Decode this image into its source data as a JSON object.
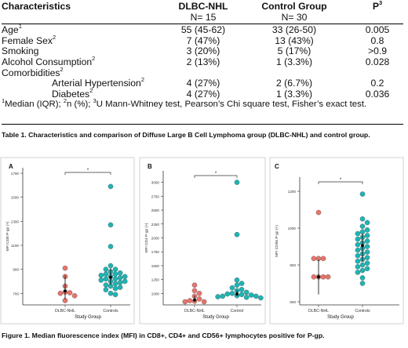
{
  "table": {
    "headers": [
      "Characteristics",
      "DLBC-NHL",
      "Control Group",
      "P"
    ],
    "header_p_sup": "3",
    "subheaders": [
      "N= 15",
      "N= 30"
    ],
    "rows": [
      {
        "label": "Age",
        "sup": "1",
        "dlbc": "55 (45-62)",
        "control": "33 (26-50)",
        "p": "0.005"
      },
      {
        "label": "Female Sex",
        "sup": "2",
        "dlbc": "7 (47%)",
        "control": "13 (43%)",
        "p": "0.8"
      },
      {
        "label": "Smoking",
        "sup": "",
        "dlbc": "3 (20%)",
        "control": "5 (17%)",
        "p": ">0.9"
      },
      {
        "label": "Alcohol Consumption",
        "sup": "2",
        "dlbc": "2 (13%)",
        "control": "1 (3.3%)",
        "p": "0.028"
      },
      {
        "label": "Comorbidities",
        "sup": "2",
        "dlbc": "",
        "control": "",
        "p": ""
      },
      {
        "label": "Arterial Hypertension",
        "sup": "2",
        "dlbc": "4 (27%)",
        "control": "2 (6.7%)",
        "p": "0.2"
      },
      {
        "label": "Diabetes",
        "sup": "2",
        "dlbc": "4 (27%)",
        "control": "1 (3.3%)",
        "p": "0.036"
      }
    ],
    "footnote": {
      "s1": "1",
      "t1": "Median (IQR); ",
      "s2": "2",
      "t2": "n (%); ",
      "s3": "3",
      "t3": "U Mann-Whitney test, Pearson’s Chi square test, Fisher’s exact test."
    }
  },
  "table_caption": "Table 1. Characteristics and comparison of Diffuse Large B Cell Lymphoma group (DLBC-NHL) and control group.",
  "figure_caption": "Figure 1. Median fluorescence index (MFI) in CD8+, CD4+ and CD56+ lymphocytes positive for P-gp.",
  "colors": {
    "dlbc": "#e8746b",
    "control": "#1db4b4",
    "summary": "#000000"
  },
  "chart_data": [
    {
      "type": "scatter",
      "panel": "A",
      "ylabel": "MFI CD8 P-gp (+)",
      "xlabel": "Study Group",
      "categories": [
        "DLBC-NHL",
        "Controls"
      ],
      "yticks": [
        700,
        900,
        1100,
        1300,
        1500,
        1700
      ],
      "ylim": [
        630,
        1720
      ],
      "significance": "*",
      "series": [
        {
          "name": "DLBC-NHL",
          "values": [
            910,
            840,
            760,
            710,
            705,
            700,
            680,
            640
          ]
        },
        {
          "name": "Controls",
          "values": [
            1590,
            1270,
            1090,
            930,
            900,
            900,
            880,
            870,
            860,
            860,
            850,
            840,
            840,
            830,
            820,
            820,
            810,
            800,
            800,
            790,
            780,
            770,
            760,
            750,
            740,
            730,
            700,
            690
          ]
        }
      ],
      "summary": {
        "DLBC-NHL": {
          "median": 720,
          "low": 650,
          "high": 850
        },
        "Controls": {
          "median": 835,
          "low": 770,
          "high": 910
        }
      }
    },
    {
      "type": "scatter",
      "panel": "B",
      "ylabel": "MFI CD4 P-gp (+)",
      "xlabel": "Study Group",
      "categories": [
        "DLBC-NHL",
        "Control"
      ],
      "yticks": [
        1000,
        1250,
        1500,
        1750,
        2000,
        2250,
        2500,
        2750,
        3000
      ],
      "ylim": [
        850,
        3150
      ],
      "significance": "*",
      "series": [
        {
          "name": "DLBC-NHL",
          "values": [
            1150,
            1050,
            1000,
            950,
            900,
            870,
            860,
            850,
            850
          ]
        },
        {
          "name": "Control",
          "values": [
            3000,
            2060,
            1240,
            1180,
            1150,
            1100,
            1070,
            1050,
            1020,
            1000,
            990,
            980,
            970,
            960,
            950,
            950,
            940,
            930,
            920
          ]
        }
      ],
      "summary": {
        "DLBC-NHL": {
          "median": 880,
          "low": 860,
          "high": 960
        },
        "Control": {
          "median": 990,
          "low": 950,
          "high": 1060
        }
      }
    },
    {
      "type": "scatter",
      "panel": "C",
      "ylabel": "MFI CD56 P-gp (+)",
      "xlabel": "Study Group",
      "categories": [
        "DLBC-NHL",
        "Controls"
      ],
      "yticks": [
        600,
        800,
        1000,
        1200
      ],
      "ylim": [
        600,
        1260
      ],
      "significance": "*",
      "series": [
        {
          "name": "DLBC-NHL",
          "values": [
            1085,
            835,
            835,
            835,
            735,
            735,
            735,
            735
          ]
        },
        {
          "name": "Controls",
          "values": [
            1185,
            1050,
            1030,
            1010,
            990,
            980,
            970,
            960,
            950,
            940,
            930,
            920,
            910,
            900,
            890,
            880,
            870,
            860,
            850,
            840,
            830,
            820,
            810,
            800,
            790,
            780,
            770,
            760,
            730,
            700
          ]
        }
      ],
      "summary": {
        "DLBC-NHL": {
          "median": 735,
          "low": 640,
          "high": 830
        },
        "Controls": {
          "median": 905,
          "low": 820,
          "high": 970
        }
      }
    }
  ]
}
